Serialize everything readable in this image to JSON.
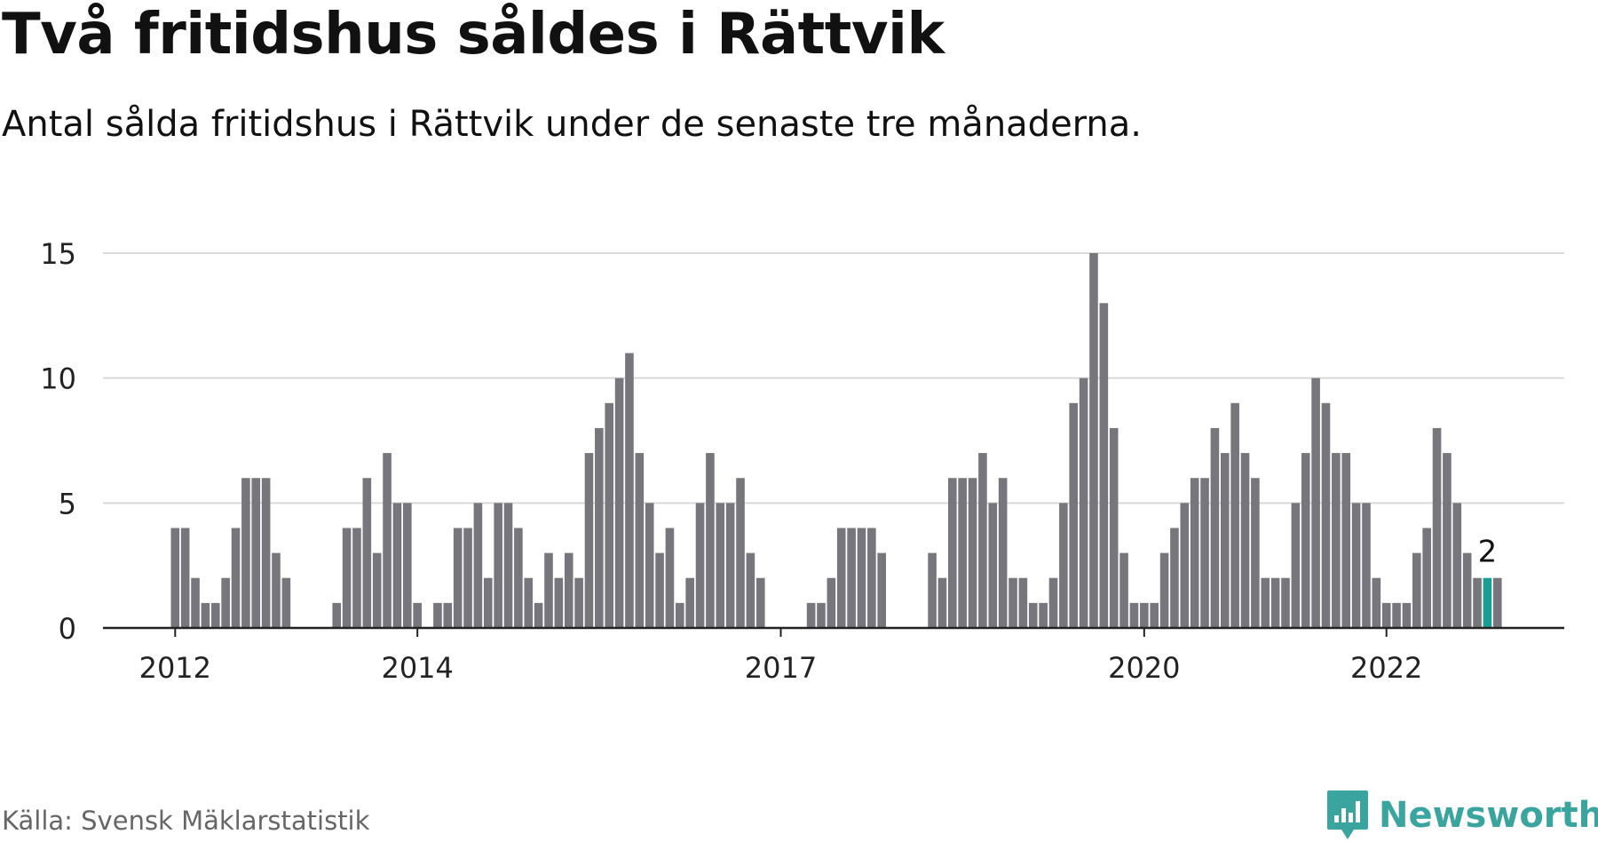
{
  "header": {
    "title": "Två fritidshus såldes i Rättvik",
    "subtitle": "Antal sålda fritidshus i Rättvik under de senaste tre månaderna."
  },
  "footer": {
    "source": "Källa: Svensk Mäklarstatistik",
    "brand": "Newsworthy",
    "brand_icon": "newsworthy-logo-icon"
  },
  "colors": {
    "bar": "#76767c",
    "highlight": "#1a9e93",
    "grid": "#d9d9d9",
    "axis": "#222222",
    "text": "#111111",
    "brand": "#3aa59e"
  },
  "chart_data": {
    "type": "bar",
    "title": "",
    "xlabel": "",
    "ylabel": "",
    "ylim": [
      0,
      15
    ],
    "yticks": [
      0,
      5,
      10,
      15
    ],
    "grid": true,
    "xtick_labels": [
      {
        "label": "2012",
        "index": 0
      },
      {
        "label": "2014",
        "index": 24
      },
      {
        "label": "2017",
        "index": 60
      },
      {
        "label": "2020",
        "index": 96
      },
      {
        "label": "2022",
        "index": 120
      }
    ],
    "values": [
      4,
      4,
      2,
      1,
      1,
      2,
      4,
      6,
      6,
      6,
      3,
      2,
      null,
      null,
      null,
      null,
      1,
      4,
      4,
      6,
      3,
      7,
      5,
      5,
      1,
      null,
      1,
      1,
      4,
      4,
      5,
      2,
      5,
      5,
      4,
      2,
      1,
      3,
      2,
      3,
      2,
      7,
      8,
      9,
      10,
      11,
      7,
      5,
      3,
      4,
      1,
      2,
      5,
      7,
      5,
      5,
      6,
      3,
      2,
      null,
      null,
      null,
      null,
      1,
      1,
      2,
      4,
      4,
      4,
      4,
      3,
      null,
      null,
      null,
      null,
      3,
      2,
      6,
      6,
      6,
      7,
      5,
      6,
      2,
      2,
      1,
      1,
      2,
      5,
      9,
      10,
      15,
      13,
      8,
      3,
      1,
      1,
      1,
      3,
      4,
      5,
      6,
      6,
      8,
      7,
      9,
      7,
      6,
      2,
      2,
      2,
      5,
      7,
      10,
      9,
      7,
      7,
      5,
      5,
      2,
      1,
      1,
      1,
      3,
      4,
      8,
      7,
      5,
      3,
      2,
      2,
      2
    ],
    "highlight_index": 130,
    "highlight_label": "2"
  }
}
